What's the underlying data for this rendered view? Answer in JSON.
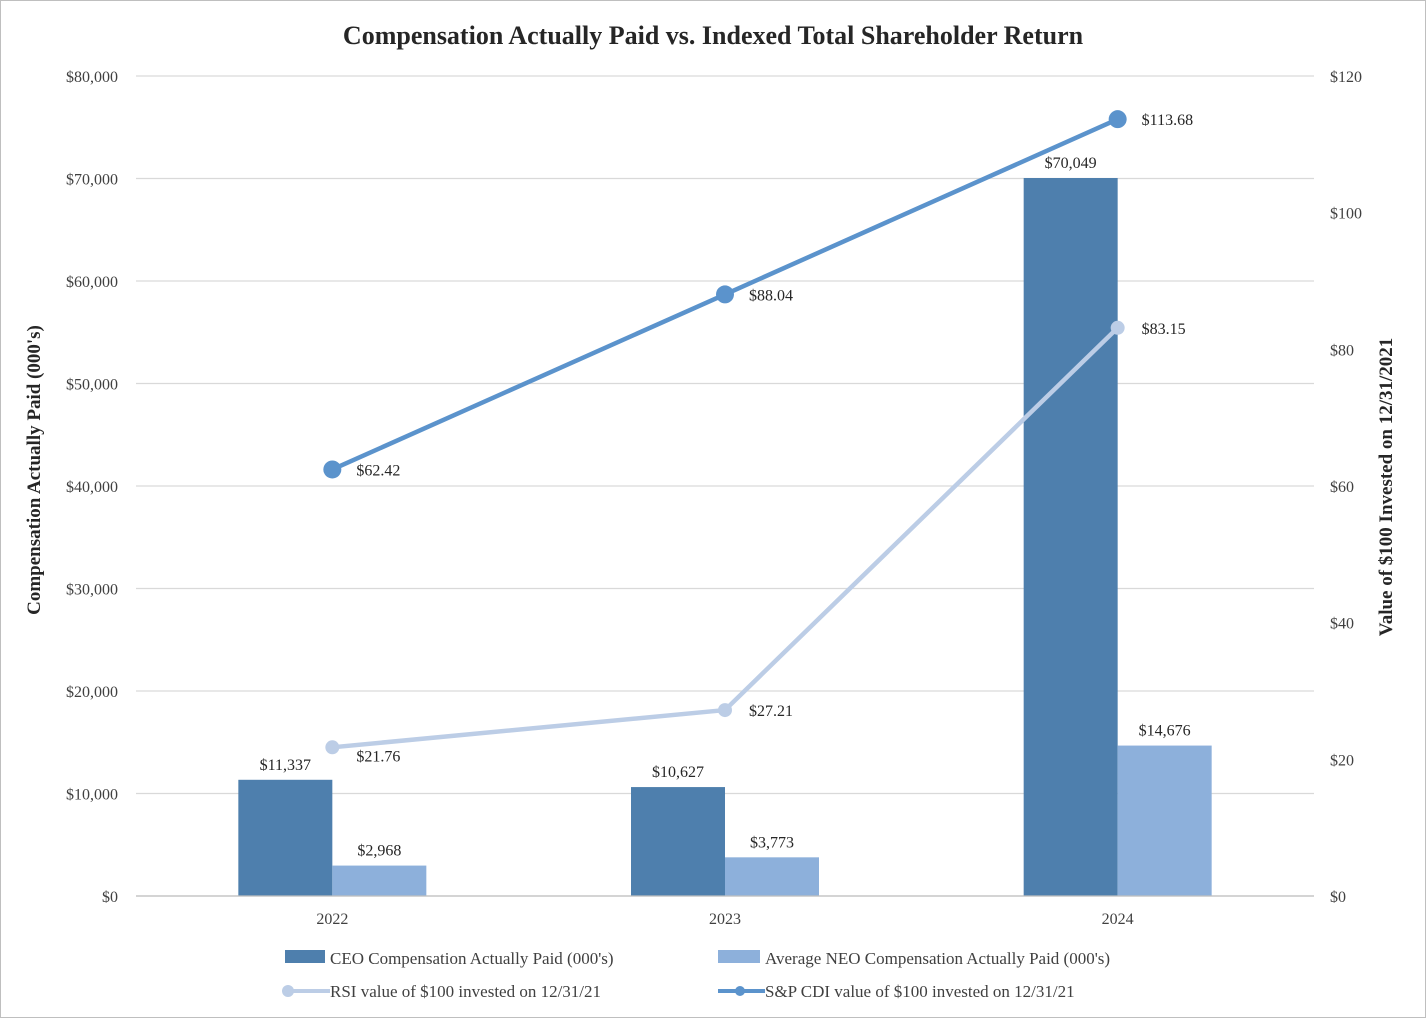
{
  "chart_data": {
    "type": "bar",
    "title": "Compensation Actually Paid vs. Indexed Total Shareholder Return",
    "categories": [
      "2022",
      "2023",
      "2024"
    ],
    "y_left": {
      "label": "Compensation Actually Paid (000's)",
      "range": [
        0,
        80000
      ],
      "ticks": [
        0,
        10000,
        20000,
        30000,
        40000,
        50000,
        60000,
        70000,
        80000
      ],
      "tick_labels": [
        "$0",
        "$10,000",
        "$20,000",
        "$30,000",
        "$40,000",
        "$50,000",
        "$60,000",
        "$70,000",
        "$80,000"
      ]
    },
    "y_right": {
      "label": "Value of $100 Invested on 12/31/2021",
      "range": [
        0,
        120
      ],
      "ticks": [
        0,
        20,
        40,
        60,
        80,
        100,
        120
      ],
      "tick_labels": [
        "$0",
        "$20",
        "$40",
        "$60",
        "$80",
        "$100",
        "$120"
      ]
    },
    "grid": true,
    "legend_position": "bottom",
    "series": [
      {
        "name": "CEO Compensation Actually Paid (000's)",
        "kind": "bar",
        "axis": "left",
        "color": "#4e7fad",
        "values": [
          11337,
          10627,
          70049
        ],
        "labels": [
          "$11,337",
          "$10,627",
          "$70,049"
        ]
      },
      {
        "name": "Average NEO Compensation Actually Paid (000's)",
        "kind": "bar",
        "axis": "left",
        "color": "#8db0db",
        "values": [
          2968,
          3773,
          14676
        ],
        "labels": [
          "$2,968",
          "$3,773",
          "$14,676"
        ]
      },
      {
        "name": "RSI value of $100 invested on 12/31/21",
        "kind": "line",
        "axis": "right",
        "color": "#bccde6",
        "values": [
          21.76,
          27.21,
          83.15
        ],
        "labels": [
          "$21.76",
          "$27.21",
          "$83.15"
        ]
      },
      {
        "name": "S&P CDI value of $100 invested on 12/31/21",
        "kind": "line",
        "axis": "right",
        "color": "#5b93cc",
        "values": [
          62.42,
          88.04,
          113.68
        ],
        "labels": [
          "$62.42",
          "$88.04",
          "$113.68"
        ]
      }
    ]
  }
}
